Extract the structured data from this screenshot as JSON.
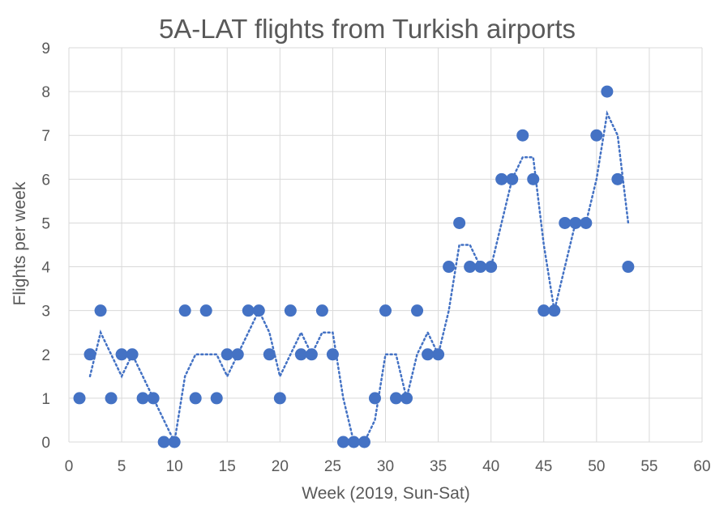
{
  "chart_data": {
    "type": "scatter",
    "title": "5A-LAT flights from Turkish airports",
    "xlabel": "Week (2019, Sun-Sat)",
    "ylabel": "Flights per week",
    "xlim": [
      0,
      60
    ],
    "ylim": [
      0,
      9
    ],
    "x_ticks": [
      0,
      5,
      10,
      15,
      20,
      25,
      30,
      35,
      40,
      45,
      50,
      55,
      60
    ],
    "y_ticks": [
      0,
      1,
      2,
      3,
      4,
      5,
      6,
      7,
      8,
      9
    ],
    "grid": true,
    "legend": "none",
    "marker_color": "#4472c4",
    "series": [
      {
        "x": [
          1,
          2,
          3,
          4,
          5,
          6,
          7,
          8,
          9,
          10,
          11,
          12,
          13,
          14,
          15,
          16,
          17,
          18,
          19,
          20,
          21,
          22,
          23,
          24,
          25,
          26,
          27,
          28,
          29,
          30,
          31,
          32,
          33,
          34,
          35,
          36,
          37,
          38,
          39,
          40,
          41,
          42,
          43,
          44,
          45,
          46,
          47,
          48,
          49,
          50,
          51,
          52,
          53
        ],
        "y": [
          1,
          2,
          3,
          1,
          2,
          2,
          1,
          1,
          0,
          0,
          3,
          1,
          3,
          1,
          2,
          2,
          3,
          3,
          2,
          1,
          3,
          2,
          2,
          3,
          2,
          0,
          0,
          0,
          1,
          3,
          1,
          1,
          3,
          2,
          2,
          4,
          5,
          4,
          4,
          4,
          6,
          6,
          7,
          6,
          3,
          3,
          5,
          5,
          5,
          7,
          8,
          6,
          4
        ]
      }
    ],
    "trendline": {
      "type": "moving_average",
      "period": 2
    }
  }
}
